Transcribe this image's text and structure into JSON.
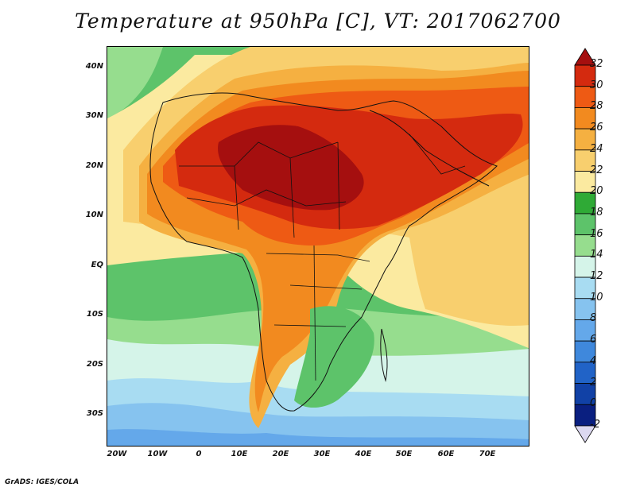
{
  "title": "Temperature at 950hPa [C], VT: 2017062700",
  "footer": "GrADS: IGES/COLA",
  "map": {
    "lat_labels": [
      "40N",
      "30N",
      "20N",
      "10N",
      "EQ",
      "10S",
      "20S",
      "30S"
    ],
    "lat_values": [
      40,
      30,
      20,
      10,
      0,
      -10,
      -20,
      -30
    ],
    "lon_labels": [
      "20W",
      "10W",
      "0",
      "10E",
      "20E",
      "30E",
      "40E",
      "50E",
      "60E",
      "70E"
    ],
    "lon_values": [
      -20,
      -10,
      0,
      10,
      20,
      30,
      40,
      50,
      60,
      70
    ],
    "lat_range": [
      -36,
      45
    ],
    "lon_range": [
      -22,
      80
    ]
  },
  "colorbar": {
    "labels": [
      "32",
      "30",
      "28",
      "26",
      "24",
      "22",
      "20",
      "18",
      "16",
      "14",
      "12",
      "10",
      "8",
      "6",
      "4",
      "2",
      "0",
      "-2"
    ],
    "colors": [
      "#a50f0f",
      "#d42a0f",
      "#ee5a14",
      "#f28a1f",
      "#f5b041",
      "#f8cf6e",
      "#fbeaa0",
      "#2faa36",
      "#5dc36a",
      "#96dd8e",
      "#d5f4e9",
      "#a8dcf2",
      "#86c3ef",
      "#64a8ea",
      "#3f88dc",
      "#2163c7",
      "#1141a6",
      "#0a1f80",
      "#dcd8f0"
    ]
  }
}
